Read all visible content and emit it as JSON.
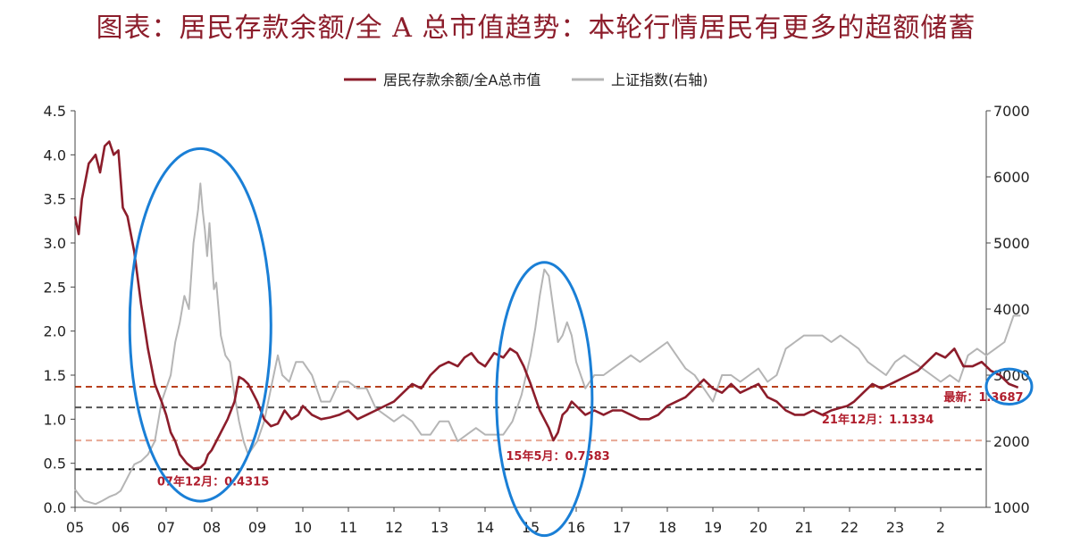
{
  "title": "图表：居民存款余额/全 A 总市值趋势：本轮行情居民有更多的超额储蓄",
  "chart_data": {
    "type": "line",
    "legend": {
      "placement": "top-center",
      "entries": [
        "居民存款余额/全A总市值",
        "上证指数(右轴)"
      ]
    },
    "x_ticks": [
      "05",
      "06",
      "07",
      "08",
      "09",
      "10",
      "11",
      "12",
      "13",
      "14",
      "15",
      "16",
      "17",
      "18",
      "19",
      "20",
      "21",
      "22",
      "23",
      "2"
    ],
    "y_left": {
      "lim": [
        0,
        4.5
      ],
      "ticks": [
        "0.0",
        "0.5",
        "1.0",
        "1.5",
        "2.0",
        "2.5",
        "3.0",
        "3.5",
        "4.0",
        "4.5"
      ]
    },
    "y_right": {
      "lim": [
        1000,
        7000
      ],
      "ticks": [
        "1000",
        "2000",
        "3000",
        "4000",
        "5000",
        "6000",
        "7000"
      ]
    },
    "series": [
      {
        "name": "居民存款余额/全A总市值",
        "axis": "left",
        "color": "#8c1d2b",
        "x": [
          2005.0,
          2005.08,
          2005.15,
          2005.3,
          2005.45,
          2005.55,
          2005.65,
          2005.75,
          2005.85,
          2005.95,
          2006.05,
          2006.15,
          2006.3,
          2006.45,
          2006.6,
          2006.75,
          2006.9,
          2007.0,
          2007.1,
          2007.2,
          2007.3,
          2007.45,
          2007.6,
          2007.75,
          2007.85,
          2007.92,
          2008.0,
          2008.1,
          2008.2,
          2008.35,
          2008.5,
          2008.6,
          2008.7,
          2008.8,
          2008.9,
          2009.0,
          2009.15,
          2009.3,
          2009.45,
          2009.6,
          2009.75,
          2009.9,
          2010.0,
          2010.2,
          2010.4,
          2010.6,
          2010.8,
          2011.0,
          2011.2,
          2011.4,
          2011.6,
          2011.8,
          2012.0,
          2012.2,
          2012.4,
          2012.6,
          2012.8,
          2013.0,
          2013.2,
          2013.4,
          2013.55,
          2013.7,
          2013.85,
          2014.0,
          2014.2,
          2014.4,
          2014.55,
          2014.7,
          2014.85,
          2015.0,
          2015.1,
          2015.2,
          2015.3,
          2015.4,
          2015.5,
          2015.6,
          2015.7,
          2015.8,
          2015.9,
          2016.0,
          2016.2,
          2016.4,
          2016.6,
          2016.8,
          2017.0,
          2017.2,
          2017.4,
          2017.6,
          2017.8,
          2018.0,
          2018.2,
          2018.4,
          2018.6,
          2018.8,
          2019.0,
          2019.2,
          2019.4,
          2019.6,
          2019.8,
          2020.0,
          2020.2,
          2020.4,
          2020.6,
          2020.8,
          2021.0,
          2021.2,
          2021.4,
          2021.6,
          2021.8,
          2021.95,
          2022.1,
          2022.3,
          2022.5,
          2022.7,
          2022.9,
          2023.1,
          2023.3,
          2023.5,
          2023.7,
          2023.9,
          2024.1,
          2024.3,
          2024.5,
          2024.7,
          2024.9,
          2025.1,
          2025.3,
          2025.5,
          2025.7
        ],
        "y": [
          3.3,
          3.1,
          3.5,
          3.9,
          4.0,
          3.8,
          4.1,
          4.15,
          4.0,
          4.05,
          3.4,
          3.3,
          2.9,
          2.3,
          1.8,
          1.4,
          1.2,
          1.05,
          0.85,
          0.75,
          0.6,
          0.5,
          0.44,
          0.45,
          0.5,
          0.6,
          0.65,
          0.75,
          0.85,
          1.0,
          1.2,
          1.48,
          1.45,
          1.4,
          1.3,
          1.2,
          1.0,
          0.92,
          0.95,
          1.1,
          1.0,
          1.05,
          1.15,
          1.05,
          1.0,
          1.02,
          1.05,
          1.1,
          1.0,
          1.05,
          1.1,
          1.15,
          1.2,
          1.3,
          1.4,
          1.35,
          1.5,
          1.6,
          1.65,
          1.6,
          1.7,
          1.75,
          1.65,
          1.6,
          1.75,
          1.7,
          1.8,
          1.75,
          1.6,
          1.4,
          1.25,
          1.1,
          1.0,
          0.9,
          0.76,
          0.85,
          1.05,
          1.1,
          1.2,
          1.15,
          1.05,
          1.1,
          1.05,
          1.1,
          1.1,
          1.05,
          1.0,
          1.0,
          1.05,
          1.15,
          1.2,
          1.25,
          1.35,
          1.45,
          1.35,
          1.3,
          1.4,
          1.3,
          1.35,
          1.4,
          1.25,
          1.2,
          1.1,
          1.05,
          1.05,
          1.1,
          1.05,
          1.1,
          1.13,
          1.15,
          1.2,
          1.3,
          1.4,
          1.35,
          1.4,
          1.45,
          1.5,
          1.55,
          1.65,
          1.75,
          1.7,
          1.8,
          1.6,
          1.6,
          1.65,
          1.55,
          1.5,
          1.4,
          1.36
        ]
      },
      {
        "name": "上证指数(右轴)",
        "axis": "right",
        "color": "#b5b5b5",
        "x": [
          2005.0,
          2005.1,
          2005.2,
          2005.3,
          2005.45,
          2005.6,
          2005.75,
          2005.9,
          2006.0,
          2006.15,
          2006.3,
          2006.45,
          2006.6,
          2006.75,
          2006.9,
          2007.0,
          2007.1,
          2007.2,
          2007.3,
          2007.4,
          2007.5,
          2007.6,
          2007.7,
          2007.75,
          2007.8,
          2007.85,
          2007.9,
          2007.95,
          2008.0,
          2008.05,
          2008.1,
          2008.2,
          2008.3,
          2008.4,
          2008.5,
          2008.6,
          2008.7,
          2008.8,
          2008.9,
          2009.0,
          2009.15,
          2009.3,
          2009.45,
          2009.55,
          2009.7,
          2009.85,
          2010.0,
          2010.2,
          2010.4,
          2010.6,
          2010.8,
          2011.0,
          2011.2,
          2011.4,
          2011.6,
          2011.8,
          2012.0,
          2012.2,
          2012.4,
          2012.6,
          2012.8,
          2013.0,
          2013.2,
          2013.4,
          2013.6,
          2013.8,
          2014.0,
          2014.2,
          2014.4,
          2014.6,
          2014.8,
          2014.9,
          2015.0,
          2015.1,
          2015.2,
          2015.3,
          2015.4,
          2015.5,
          2015.6,
          2015.7,
          2015.8,
          2015.9,
          2016.0,
          2016.1,
          2016.2,
          2016.4,
          2016.6,
          2016.8,
          2017.0,
          2017.2,
          2017.4,
          2017.6,
          2017.8,
          2018.0,
          2018.2,
          2018.4,
          2018.6,
          2018.8,
          2019.0,
          2019.2,
          2019.4,
          2019.6,
          2019.8,
          2020.0,
          2020.2,
          2020.4,
          2020.6,
          2020.8,
          2021.0,
          2021.2,
          2021.4,
          2021.6,
          2021.8,
          2022.0,
          2022.2,
          2022.4,
          2022.6,
          2022.8,
          2023.0,
          2023.2,
          2023.4,
          2023.6,
          2023.8,
          2024.0,
          2024.2,
          2024.4,
          2024.6,
          2024.8,
          2025.0,
          2025.2,
          2025.4,
          2025.6,
          2025.75
        ],
        "y": [
          1270,
          1180,
          1100,
          1080,
          1050,
          1100,
          1160,
          1200,
          1250,
          1450,
          1650,
          1700,
          1800,
          2000,
          2600,
          2800,
          3000,
          3500,
          3800,
          4200,
          4000,
          5000,
          5500,
          5900,
          5500,
          5200,
          4800,
          5300,
          4800,
          4300,
          4400,
          3600,
          3300,
          3200,
          2700,
          2300,
          2000,
          1800,
          1900,
          2000,
          2300,
          2800,
          3300,
          3000,
          2900,
          3200,
          3200,
          3000,
          2600,
          2600,
          2900,
          2900,
          2800,
          2800,
          2500,
          2400,
          2300,
          2400,
          2300,
          2100,
          2100,
          2300,
          2300,
          2000,
          2100,
          2200,
          2100,
          2100,
          2100,
          2300,
          2700,
          3000,
          3300,
          3700,
          4200,
          4600,
          4500,
          4000,
          3500,
          3600,
          3800,
          3600,
          3200,
          3000,
          2800,
          3000,
          3000,
          3100,
          3200,
          3300,
          3200,
          3300,
          3400,
          3500,
          3300,
          3100,
          3000,
          2800,
          2600,
          3000,
          3000,
          2900,
          3000,
          3100,
          2900,
          3000,
          3400,
          3500,
          3600,
          3600,
          3600,
          3500,
          3600,
          3500,
          3400,
          3200,
          3100,
          3000,
          3200,
          3300,
          3200,
          3100,
          3000,
          2900,
          3000,
          2900,
          3300,
          3400,
          3300,
          3400,
          3500,
          3900,
          3900
        ]
      }
    ],
    "reference_lines": [
      {
        "value": 1.3687,
        "color": "#b8401e"
      },
      {
        "value": 1.1334,
        "color": "#555555"
      },
      {
        "value": 0.7583,
        "color": "#e8a894"
      },
      {
        "value": 0.4315,
        "color": "#111111"
      }
    ],
    "annotations": [
      {
        "text": "07年12月：0.4315",
        "x": 2007.9,
        "y": 0.4315
      },
      {
        "text": "15年5月：0.7583",
        "x": 2015.4,
        "y": 0.7583
      },
      {
        "text": "21年12月：1.1334",
        "x": 2021.9,
        "y": 1.1334
      },
      {
        "text": "最新：1.3687",
        "x": 2025.4,
        "y": 1.3687
      }
    ],
    "highlights": [
      {
        "x_center": 2007.75,
        "y_center": 2.07,
        "rx_years": 1.55,
        "ry": 2.0
      },
      {
        "x_center": 2015.3,
        "y_center": 1.23,
        "rx_years": 1.05,
        "ry": 1.55
      },
      {
        "x_center": 2025.5,
        "y_center": 1.37,
        "rx_years": 0.5,
        "ry": 0.2
      }
    ]
  }
}
